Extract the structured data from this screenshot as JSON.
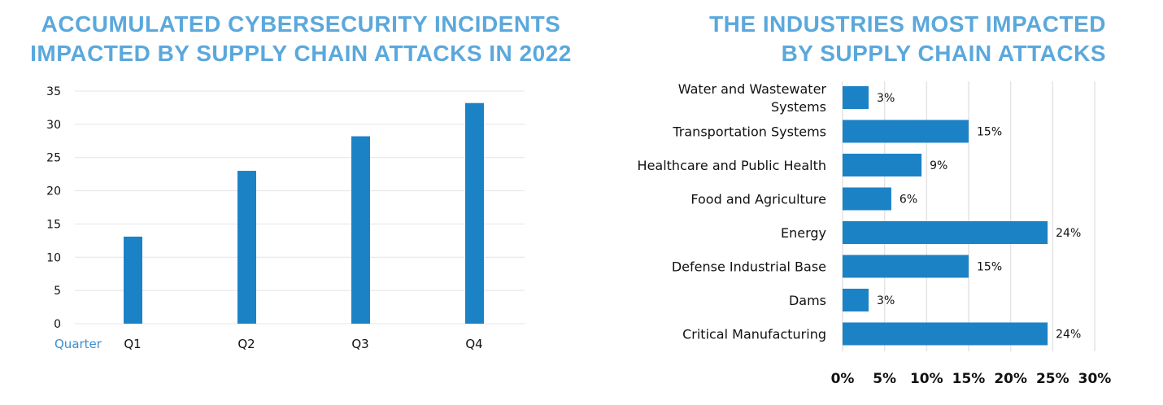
{
  "colors": {
    "title": "#5aa8dc",
    "bar": "#1c82c6",
    "grid": "#e4e4e4",
    "axis_label": "#3a8fd0"
  },
  "chart_data": [
    {
      "type": "bar",
      "title_lines": [
        "ACCUMULATED CYBERSECURITY INCIDENTS",
        "IMPACTED BY SUPPLY CHAIN ATTACKS IN 2022"
      ],
      "xlabel": "Quarter",
      "ylabel": "",
      "categories": [
        "Q1",
        "Q2",
        "Q3",
        "Q4"
      ],
      "values": [
        13.1,
        23,
        28.2,
        33.2
      ],
      "ylim": [
        0,
        35
      ],
      "yticks": [
        "0",
        "5",
        "10",
        "15",
        "20",
        "25",
        "30",
        "35"
      ],
      "grid": true,
      "orientation": "vertical"
    },
    {
      "type": "bar",
      "orientation": "horizontal",
      "title_lines": [
        "THE INDUSTRIES MOST IMPACTED",
        "BY SUPPLY CHAIN ATTACKS"
      ],
      "categories": [
        [
          "Water and Wastewater",
          "Systems"
        ],
        [
          "Transportation Systems"
        ],
        [
          "Healthcare and Public Health"
        ],
        [
          "Food and Agriculture"
        ],
        [
          "Energy"
        ],
        [
          "Defense Industrial Base"
        ],
        [
          "Dams"
        ],
        [
          "Critical Manufacturing"
        ]
      ],
      "values": [
        3.1,
        15,
        9.4,
        5.8,
        24.4,
        15,
        3.1,
        24.4
      ],
      "data_labels": [
        "3%",
        "15%",
        "9%",
        "6%",
        "24%",
        "15%",
        "3%",
        "24%"
      ],
      "xlim": [
        0,
        30
      ],
      "xticks": [
        "0%",
        "5%",
        "10%",
        "15%",
        "20%",
        "25%",
        "30%"
      ],
      "grid": true
    }
  ]
}
